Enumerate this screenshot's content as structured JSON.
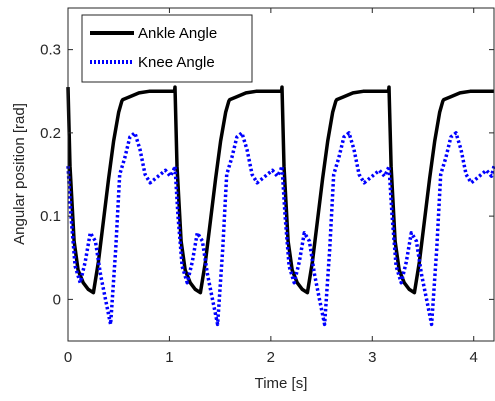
{
  "chart_data": {
    "type": "line",
    "title": "",
    "xlabel": "Time [s]",
    "ylabel": "Angular position [rad]",
    "xlim": [
      0,
      4.2
    ],
    "ylim": [
      -0.05,
      0.35
    ],
    "xticks": [
      "0",
      "1",
      "2",
      "3",
      "4"
    ],
    "yticks": [
      "0",
      "0.1",
      "0.2",
      "0.3"
    ],
    "grid": false,
    "legend_position": "top-left",
    "period": 1.055,
    "series": [
      {
        "name": "Ankle Angle",
        "color": "#000000",
        "style": "solid",
        "x": [
          0,
          0.02,
          0.06,
          0.1,
          0.15,
          0.2,
          0.25,
          0.3,
          0.35,
          0.4,
          0.45,
          0.5,
          0.53,
          0.54,
          0.6,
          0.7,
          0.8,
          0.9,
          1.0,
          1.05,
          1.055,
          1.075,
          1.115,
          1.155,
          1.205,
          1.255,
          1.305,
          1.355,
          1.405,
          1.455,
          1.505,
          1.555,
          1.585,
          1.595,
          1.655,
          1.755,
          1.855,
          1.955,
          2.055,
          2.105,
          2.11,
          2.13,
          2.17,
          2.21,
          2.26,
          2.31,
          2.36,
          2.41,
          2.46,
          2.51,
          2.56,
          2.61,
          2.64,
          2.65,
          2.71,
          2.81,
          2.91,
          3.01,
          3.11,
          3.16,
          3.165,
          3.185,
          3.225,
          3.265,
          3.315,
          3.365,
          3.415,
          3.465,
          3.515,
          3.565,
          3.615,
          3.665,
          3.695,
          3.705,
          3.765,
          3.865,
          3.965,
          4.065,
          4.165,
          4.2
        ],
        "y": [
          0.255,
          0.16,
          0.07,
          0.035,
          0.02,
          0.012,
          0.008,
          0.045,
          0.095,
          0.145,
          0.19,
          0.225,
          0.238,
          0.24,
          0.243,
          0.248,
          0.25,
          0.25,
          0.25,
          0.25,
          0.255,
          0.16,
          0.07,
          0.035,
          0.02,
          0.012,
          0.008,
          0.045,
          0.095,
          0.145,
          0.19,
          0.225,
          0.238,
          0.24,
          0.243,
          0.248,
          0.25,
          0.25,
          0.25,
          0.25,
          0.255,
          0.16,
          0.07,
          0.035,
          0.02,
          0.012,
          0.008,
          0.045,
          0.095,
          0.145,
          0.19,
          0.225,
          0.238,
          0.24,
          0.243,
          0.248,
          0.25,
          0.25,
          0.25,
          0.25,
          0.255,
          0.16,
          0.07,
          0.035,
          0.02,
          0.012,
          0.008,
          0.045,
          0.095,
          0.145,
          0.19,
          0.225,
          0.238,
          0.24,
          0.243,
          0.248,
          0.25,
          0.25,
          0.25,
          0.25
        ]
      },
      {
        "name": "Knee Angle",
        "color": "#0000ff",
        "style": "dotted",
        "x": [
          0,
          0.03,
          0.07,
          0.12,
          0.17,
          0.22,
          0.27,
          0.32,
          0.37,
          0.42,
          0.47,
          0.51,
          0.56,
          0.61,
          0.66,
          0.71,
          0.76,
          0.81,
          0.86,
          0.91,
          0.96,
          1.01,
          1.04,
          1.055,
          1.085,
          1.125,
          1.175,
          1.225,
          1.275,
          1.325,
          1.375,
          1.425,
          1.475,
          1.525,
          1.565,
          1.615,
          1.665,
          1.715,
          1.765,
          1.815,
          1.865,
          1.915,
          1.965,
          2.015,
          2.065,
          2.095,
          2.11,
          2.14,
          2.18,
          2.23,
          2.28,
          2.33,
          2.38,
          2.43,
          2.48,
          2.53,
          2.58,
          2.62,
          2.67,
          2.72,
          2.77,
          2.82,
          2.87,
          2.92,
          2.97,
          3.02,
          3.07,
          3.12,
          3.15,
          3.165,
          3.195,
          3.235,
          3.285,
          3.335,
          3.385,
          3.435,
          3.485,
          3.535,
          3.585,
          3.635,
          3.675,
          3.725,
          3.775,
          3.825,
          3.875,
          3.925,
          3.975,
          4.025,
          4.075,
          4.125,
          4.175,
          4.2
        ],
        "y": [
          0.16,
          0.1,
          0.04,
          0.02,
          0.045,
          0.08,
          0.07,
          0.03,
          0.0,
          -0.03,
          0.06,
          0.15,
          0.17,
          0.195,
          0.2,
          0.18,
          0.15,
          0.14,
          0.145,
          0.15,
          0.155,
          0.148,
          0.155,
          0.16,
          0.1,
          0.04,
          0.02,
          0.045,
          0.08,
          0.07,
          0.03,
          0.0,
          -0.03,
          0.06,
          0.15,
          0.17,
          0.195,
          0.2,
          0.18,
          0.15,
          0.14,
          0.145,
          0.15,
          0.155,
          0.148,
          0.155,
          0.16,
          0.1,
          0.04,
          0.02,
          0.045,
          0.08,
          0.07,
          0.03,
          0.0,
          -0.03,
          0.06,
          0.15,
          0.17,
          0.195,
          0.2,
          0.18,
          0.15,
          0.14,
          0.145,
          0.15,
          0.155,
          0.148,
          0.155,
          0.16,
          0.1,
          0.04,
          0.02,
          0.045,
          0.08,
          0.07,
          0.03,
          0.0,
          -0.03,
          0.06,
          0.15,
          0.17,
          0.195,
          0.2,
          0.18,
          0.15,
          0.14,
          0.145,
          0.15,
          0.155,
          0.148,
          0.16
        ]
      }
    ]
  }
}
